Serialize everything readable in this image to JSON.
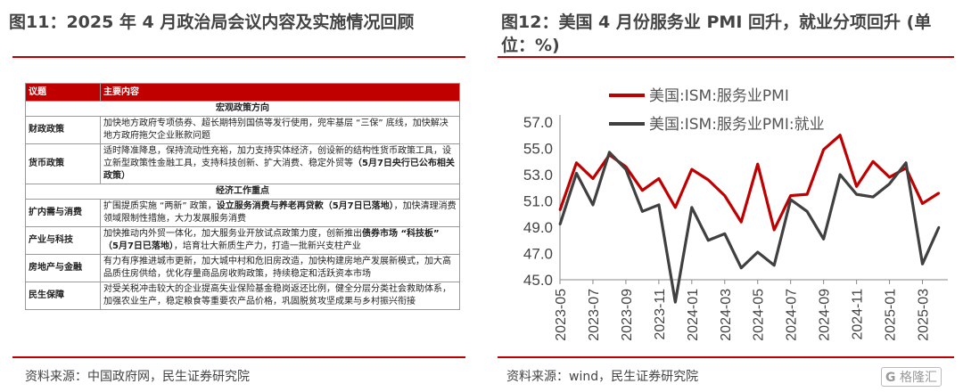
{
  "left": {
    "title": "图11：2025 年 4 月政治局会议内容及实施情况回顾",
    "source": "资料来源：中国政府网，民生证券研究院",
    "table": {
      "headers": [
        "议题",
        "主要内容"
      ],
      "rows": [
        {
          "type": "section",
          "text": "宏观政策方向"
        },
        {
          "type": "row",
          "topic": "财政政策",
          "parts": [
            {
              "t": "加快地方政府专项债券、超长期特别国债等发行使用，兜牢基层 “三保” 底线，加快解决地方政府拖欠企业账款问题",
              "b": false
            }
          ]
        },
        {
          "type": "row",
          "topic": "货币政策",
          "parts": [
            {
              "t": "适时降准降息，保持流动性充裕，加力支持实体经济，创设新的结构性货币政策工具，设立新型政策性金融工具，支持科技创新、扩大消费、稳定外贸等",
              "b": false
            },
            {
              "t": "（5月7日央行已公布相关政策）",
              "b": true
            }
          ]
        },
        {
          "type": "section",
          "text": "经济工作重点"
        },
        {
          "type": "row",
          "topic": "扩内需与消费",
          "parts": [
            {
              "t": "扩围提质实施 “两新” 政策，",
              "b": false
            },
            {
              "t": "设立服务消费与养老再贷款（5月7日已落地）",
              "b": true
            },
            {
              "t": "，加快清理消费领域限制性措施，大力发展服务消费",
              "b": false
            }
          ]
        },
        {
          "type": "row",
          "topic": "产业与科技",
          "parts": [
            {
              "t": "加快推动内外贸一体化，加大服务业开放试点政策力度，创新推出",
              "b": false
            },
            {
              "t": "债券市场 “科技板” （5月7日已落地）",
              "b": true
            },
            {
              "t": "，培育壮大新质生产力，打造一批新兴支柱产业",
              "b": false
            }
          ]
        },
        {
          "type": "row",
          "topic": "房地产与金融",
          "parts": [
            {
              "t": "有力有序推进城市更新，加大城中村和危旧房改造，加快构建房地产发展新模式，加大高品质住房供给，优化存量商品房收购政策，持续稳定和活跃资本市场",
              "b": false
            }
          ]
        },
        {
          "type": "row",
          "topic": "民生保障",
          "parts": [
            {
              "t": "对受关税冲击较大的企业提高失业保险基金稳岗返还比例，健全分层分类社会救助体系，加强农业生产，稳定粮食等重要农产品价格，巩固脱贫攻坚成果与乡村振兴衔接",
              "b": false
            }
          ]
        }
      ]
    }
  },
  "right": {
    "title": "图12：美国 4 月份服务业 PMI 回升，就业分项回升 (单位：%)",
    "source": "资料来源：wind，民生证券研究院",
    "watermark": "格隆汇"
  },
  "chart_data": {
    "type": "line",
    "x": [
      "2023-05",
      "2023-06",
      "2023-07",
      "2023-08",
      "2023-09",
      "2023-10",
      "2023-11",
      "2023-12",
      "2024-01",
      "2024-02",
      "2024-03",
      "2024-04",
      "2024-05",
      "2024-06",
      "2024-07",
      "2024-08",
      "2024-09",
      "2024-10",
      "2024-11",
      "2024-12",
      "2025-01",
      "2025-02",
      "2025-03",
      "2025-04"
    ],
    "xticks": [
      "2023-05",
      "2023-07",
      "2023-09",
      "2023-11",
      "2024-01",
      "2024-03",
      "2024-05",
      "2024-07",
      "2024-09",
      "2024-11",
      "2025-01",
      "2025-03"
    ],
    "series": [
      {
        "name": "美国:ISM:服务业PMI",
        "color": "#c00000",
        "values": [
          50.3,
          53.9,
          52.7,
          54.5,
          53.6,
          51.8,
          52.7,
          50.5,
          53.4,
          52.6,
          51.4,
          49.4,
          53.8,
          48.8,
          51.4,
          51.5,
          54.9,
          56.0,
          52.1,
          54.0,
          52.8,
          53.5,
          50.8,
          51.6
        ]
      },
      {
        "name": "美国:ISM:服务业PMI:就业",
        "color": "#404040",
        "values": [
          49.2,
          53.1,
          50.7,
          54.7,
          53.4,
          50.2,
          50.7,
          43.3,
          50.5,
          48.0,
          48.5,
          45.9,
          47.1,
          46.1,
          51.1,
          50.2,
          48.1,
          53.0,
          51.5,
          51.3,
          52.3,
          53.9,
          46.2,
          49.0
        ]
      }
    ],
    "yticks": [
      "57.0",
      "55.0",
      "53.0",
      "51.0",
      "49.0",
      "47.0",
      "45.0"
    ],
    "ylim": [
      45,
      57
    ]
  }
}
